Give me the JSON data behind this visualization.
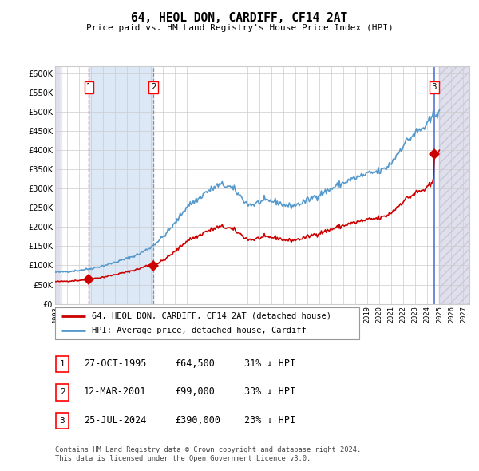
{
  "title": "64, HEOL DON, CARDIFF, CF14 2AT",
  "subtitle": "Price paid vs. HM Land Registry's House Price Index (HPI)",
  "legend_line1": "64, HEOL DON, CARDIFF, CF14 2AT (detached house)",
  "legend_line2": "HPI: Average price, detached house, Cardiff",
  "footer1": "Contains HM Land Registry data © Crown copyright and database right 2024.",
  "footer2": "This data is licensed under the Open Government Licence v3.0.",
  "transactions": [
    {
      "num": 1,
      "date": "27-OCT-1995",
      "price": 64500,
      "hpi_rel": "31% ↓ HPI",
      "x_year": 1995.82,
      "vline_style": "dashed",
      "vline_color": "#cc0000"
    },
    {
      "num": 2,
      "date": "12-MAR-2001",
      "price": 99000,
      "hpi_rel": "33% ↓ HPI",
      "x_year": 2001.19,
      "vline_style": "dashed",
      "vline_color": "#888888"
    },
    {
      "num": 3,
      "date": "25-JUL-2024",
      "price": 390000,
      "hpi_rel": "23% ↓ HPI",
      "x_year": 2024.56,
      "vline_style": "solid",
      "vline_color": "#4444cc"
    }
  ],
  "hpi_color": "#5599cc",
  "price_color": "#cc0000",
  "shade_color": "#dce8f5",
  "hatch_color": "#d8d8e8",
  "ylim_min": 0,
  "ylim_max": 620000,
  "xlim_min": 1993.0,
  "xlim_max": 2027.5,
  "yticks": [
    0,
    50000,
    100000,
    150000,
    200000,
    250000,
    300000,
    350000,
    400000,
    450000,
    500000,
    550000,
    600000
  ],
  "ytick_labels": [
    "£0",
    "£50K",
    "£100K",
    "£150K",
    "£200K",
    "£250K",
    "£300K",
    "£350K",
    "£400K",
    "£450K",
    "£500K",
    "£550K",
    "£600K"
  ],
  "xticks": [
    1993,
    1994,
    1995,
    1996,
    1997,
    1998,
    1999,
    2000,
    2001,
    2002,
    2003,
    2004,
    2005,
    2006,
    2007,
    2008,
    2009,
    2010,
    2011,
    2012,
    2013,
    2014,
    2015,
    2016,
    2017,
    2018,
    2019,
    2020,
    2021,
    2022,
    2023,
    2024,
    2025,
    2026,
    2027
  ]
}
